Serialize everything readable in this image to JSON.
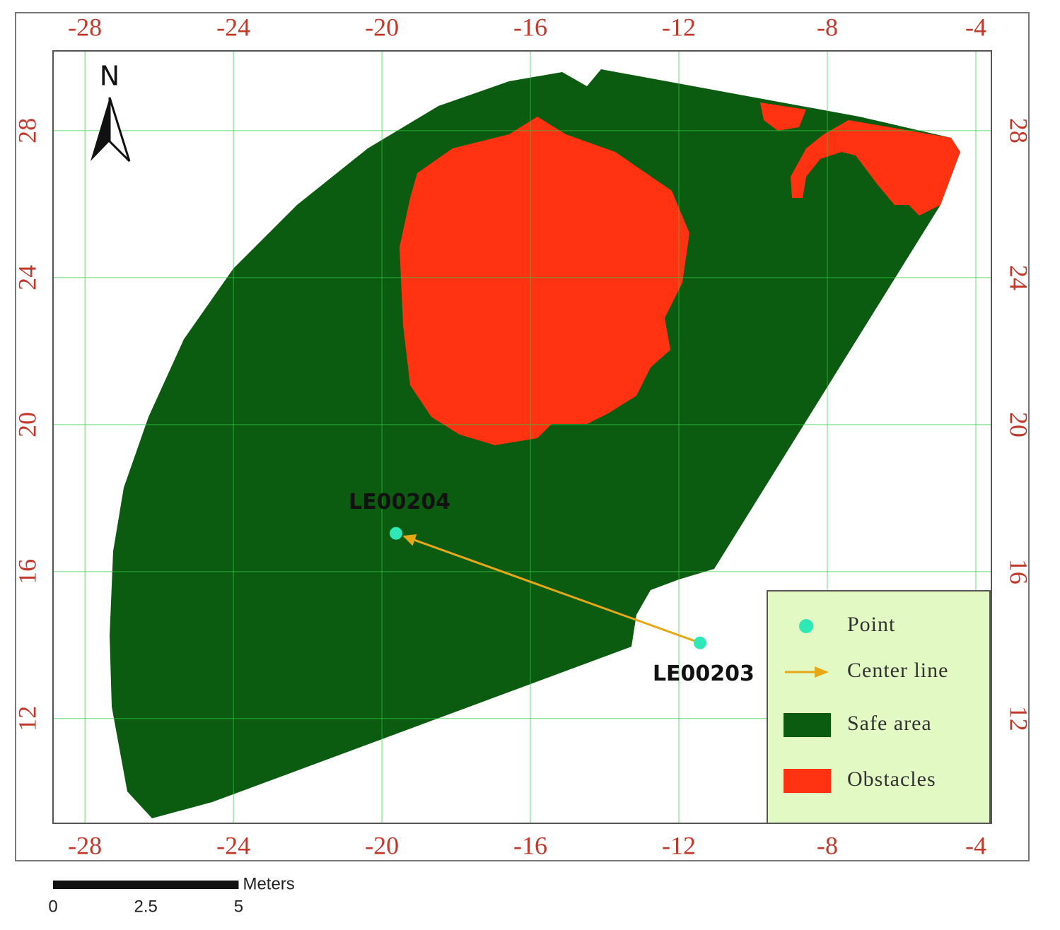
{
  "map": {
    "xlim": [
      -28.86,
      -3.58
    ],
    "ylim": [
      9.15,
      30.17
    ],
    "xticks": [
      -28,
      -24,
      -20,
      -16,
      -12,
      -8,
      -4
    ],
    "yticks": [
      12,
      16,
      20,
      24,
      28
    ],
    "grid": true,
    "north": "N",
    "points": [
      {
        "label": "LE00204",
        "x": -19.62,
        "y": 17.04
      },
      {
        "label": "LE00203",
        "x": -11.43,
        "y": 14.06
      }
    ],
    "legend": [
      "Point",
      "Center line",
      "Safe area",
      "Obstacles"
    ],
    "scale_bar": {
      "unit": "Meters",
      "ticks": [
        0,
        2.5,
        5
      ]
    }
  }
}
